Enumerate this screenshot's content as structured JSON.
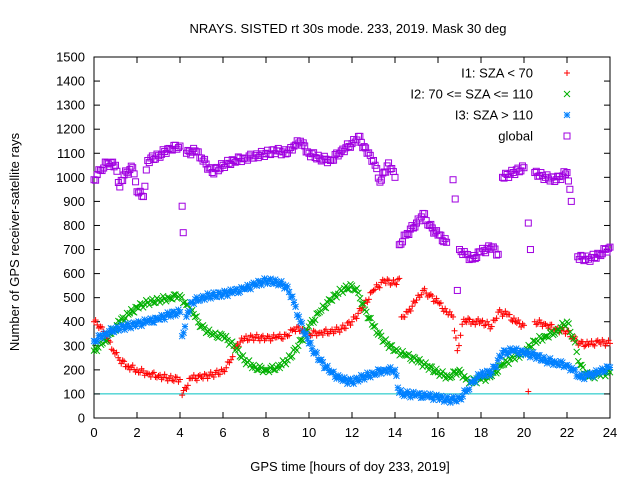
{
  "chart_data": {
    "type": "scatter",
    "title": "NRAYS. SISTED rt 30s mode. 233, 2019. Mask 30 deg",
    "xlabel": "GPS time [hours of doy 233, 2019]",
    "ylabel": "Number of GPS receiver-satellite rays",
    "xlim": [
      0,
      24
    ],
    "ylim": [
      0,
      1500
    ],
    "xticks": [
      0,
      2,
      4,
      6,
      8,
      10,
      12,
      14,
      16,
      18,
      20,
      22,
      24
    ],
    "yticks": [
      0,
      100,
      200,
      300,
      400,
      500,
      600,
      700,
      800,
      900,
      1000,
      1100,
      1200,
      1300,
      1400,
      1500
    ],
    "legend_position": "top-right",
    "reference_line": {
      "y": 100,
      "color": "#00c0c0"
    },
    "series": [
      {
        "name": "I1: SZA < 70",
        "color": "#ff0000",
        "marker": "plus",
        "points": [
          [
            0,
            400
          ],
          [
            0.3,
            380
          ],
          [
            0.6,
            330
          ],
          [
            0.9,
            280
          ],
          [
            1.2,
            240
          ],
          [
            1.6,
            215
          ],
          [
            2,
            200
          ],
          [
            2.5,
            185
          ],
          [
            3,
            175
          ],
          [
            3.5,
            165
          ],
          [
            4,
            160
          ],
          [
            4.1,
            95
          ],
          [
            4.5,
            165
          ],
          [
            5,
            170
          ],
          [
            5.5,
            180
          ],
          [
            6,
            195
          ],
          [
            6.3,
            230
          ],
          [
            6.6,
            300
          ],
          [
            7,
            330
          ],
          [
            7.5,
            335
          ],
          [
            8,
            330
          ],
          [
            8.5,
            335
          ],
          [
            9,
            340
          ],
          [
            9.3,
            370
          ],
          [
            9.7,
            370
          ],
          [
            10,
            350
          ],
          [
            10.5,
            355
          ],
          [
            11,
            360
          ],
          [
            11.5,
            370
          ],
          [
            12,
            400
          ],
          [
            12.5,
            460
          ],
          [
            13,
            530
          ],
          [
            13.5,
            570
          ],
          [
            14,
            560
          ],
          [
            14.2,
            580
          ],
          [
            14.3,
            420
          ],
          [
            14.6,
            440
          ],
          [
            15,
            490
          ],
          [
            15.3,
            530
          ],
          [
            15.6,
            510
          ],
          [
            16,
            480
          ],
          [
            16.4,
            440
          ],
          [
            16.7,
            420
          ],
          [
            16.9,
            280
          ],
          [
            17.2,
            410
          ],
          [
            17.6,
            400
          ],
          [
            18,
            400
          ],
          [
            18.5,
            380
          ],
          [
            18.8,
            440
          ],
          [
            19.2,
            430
          ],
          [
            19.6,
            400
          ],
          [
            20,
            385
          ],
          [
            20.2,
            110
          ],
          [
            20.5,
            400
          ],
          [
            21,
            390
          ],
          [
            21.5,
            370
          ],
          [
            22,
            360
          ],
          [
            22.3,
            330
          ],
          [
            22.6,
            310
          ],
          [
            23,
            305
          ],
          [
            23.5,
            315
          ],
          [
            24,
            310
          ]
        ]
      },
      {
        "name": "I2: 70 <= SZA <= 110",
        "color": "#00b000",
        "marker": "cross",
        "points": [
          [
            0,
            280
          ],
          [
            0.4,
            310
          ],
          [
            0.8,
            350
          ],
          [
            1.2,
            400
          ],
          [
            1.6,
            430
          ],
          [
            2,
            460
          ],
          [
            2.5,
            480
          ],
          [
            3,
            490
          ],
          [
            3.5,
            500
          ],
          [
            4,
            510
          ],
          [
            4.3,
            470
          ],
          [
            4.7,
            420
          ],
          [
            5,
            380
          ],
          [
            5.5,
            345
          ],
          [
            6,
            340
          ],
          [
            6.5,
            300
          ],
          [
            7,
            240
          ],
          [
            7.5,
            210
          ],
          [
            8,
            200
          ],
          [
            8.5,
            210
          ],
          [
            9,
            240
          ],
          [
            9.5,
            300
          ],
          [
            10,
            380
          ],
          [
            10.5,
            440
          ],
          [
            11,
            490
          ],
          [
            11.5,
            530
          ],
          [
            12,
            550
          ],
          [
            12.3,
            520
          ],
          [
            12.6,
            450
          ],
          [
            13,
            380
          ],
          [
            13.5,
            320
          ],
          [
            14,
            280
          ],
          [
            14.5,
            260
          ],
          [
            15,
            240
          ],
          [
            15.5,
            215
          ],
          [
            16,
            190
          ],
          [
            16.5,
            170
          ],
          [
            17,
            200
          ],
          [
            17.3,
            160
          ],
          [
            17.6,
            150
          ],
          [
            18,
            160
          ],
          [
            18.5,
            175
          ],
          [
            19,
            220
          ],
          [
            19.5,
            250
          ],
          [
            20,
            270
          ],
          [
            20.5,
            320
          ],
          [
            21,
            340
          ],
          [
            21.5,
            360
          ],
          [
            22,
            400
          ],
          [
            22.3,
            330
          ],
          [
            22.6,
            220
          ],
          [
            23,
            170
          ],
          [
            23.5,
            180
          ],
          [
            24,
            190
          ]
        ]
      },
      {
        "name": "I3: SZA > 110",
        "color": "#0080ff",
        "marker": "star",
        "points": [
          [
            0,
            320
          ],
          [
            0.5,
            350
          ],
          [
            1,
            370
          ],
          [
            1.5,
            380
          ],
          [
            2,
            390
          ],
          [
            2.5,
            400
          ],
          [
            3,
            410
          ],
          [
            3.5,
            430
          ],
          [
            4,
            440
          ],
          [
            4.1,
            340
          ],
          [
            4.5,
            480
          ],
          [
            5,
            500
          ],
          [
            5.5,
            510
          ],
          [
            6,
            515
          ],
          [
            6.5,
            525
          ],
          [
            7,
            535
          ],
          [
            7.5,
            555
          ],
          [
            8,
            570
          ],
          [
            8.5,
            565
          ],
          [
            9,
            545
          ],
          [
            9.3,
            480
          ],
          [
            9.6,
            400
          ],
          [
            10,
            310
          ],
          [
            10.5,
            240
          ],
          [
            11,
            190
          ],
          [
            11.5,
            160
          ],
          [
            12,
            150
          ],
          [
            12.5,
            170
          ],
          [
            13,
            185
          ],
          [
            13.5,
            200
          ],
          [
            14,
            200
          ],
          [
            14.2,
            105
          ],
          [
            14.5,
            100
          ],
          [
            15,
            95
          ],
          [
            15.5,
            90
          ],
          [
            16,
            85
          ],
          [
            16.5,
            75
          ],
          [
            17,
            80
          ],
          [
            17.3,
            110
          ],
          [
            17.6,
            150
          ],
          [
            18,
            180
          ],
          [
            18.5,
            190
          ],
          [
            19,
            270
          ],
          [
            19.5,
            280
          ],
          [
            20,
            270
          ],
          [
            20.5,
            260
          ],
          [
            21,
            240
          ],
          [
            21.5,
            230
          ],
          [
            22,
            220
          ],
          [
            22.3,
            200
          ],
          [
            22.6,
            170
          ],
          [
            23,
            175
          ],
          [
            23.5,
            190
          ],
          [
            24,
            210
          ]
        ]
      },
      {
        "name": "global",
        "color": "#a000e0",
        "marker": "box",
        "points": [
          [
            0,
            990
          ],
          [
            0.3,
            1030
          ],
          [
            0.6,
            1060
          ],
          [
            1,
            1050
          ],
          [
            1.2,
            960
          ],
          [
            1.4,
            1010
          ],
          [
            1.8,
            1040
          ],
          [
            2,
            940
          ],
          [
            2.3,
            920
          ],
          [
            2.5,
            1070
          ],
          [
            3,
            1090
          ],
          [
            3.5,
            1120
          ],
          [
            4,
            1130
          ],
          [
            4.1,
            880
          ],
          [
            4.15,
            770
          ],
          [
            4.3,
            1100
          ],
          [
            4.7,
            1110
          ],
          [
            5,
            1080
          ],
          [
            5.5,
            1020
          ],
          [
            6,
            1050
          ],
          [
            6.5,
            1070
          ],
          [
            7,
            1080
          ],
          [
            7.5,
            1090
          ],
          [
            8,
            1100
          ],
          [
            8.5,
            1110
          ],
          [
            9,
            1100
          ],
          [
            9.3,
            1130
          ],
          [
            9.6,
            1150
          ],
          [
            10,
            1100
          ],
          [
            10.5,
            1080
          ],
          [
            11,
            1070
          ],
          [
            11.5,
            1110
          ],
          [
            12,
            1140
          ],
          [
            12.3,
            1170
          ],
          [
            12.7,
            1100
          ],
          [
            13,
            1070
          ],
          [
            13.3,
            980
          ],
          [
            13.7,
            1060
          ],
          [
            14,
            1000
          ],
          [
            14.2,
            720
          ],
          [
            14.5,
            760
          ],
          [
            15,
            810
          ],
          [
            15.3,
            850
          ],
          [
            15.6,
            800
          ],
          [
            16,
            760
          ],
          [
            16.4,
            730
          ],
          [
            16.7,
            990
          ],
          [
            16.8,
            910
          ],
          [
            16.9,
            530
          ],
          [
            17,
            700
          ],
          [
            17.3,
            680
          ],
          [
            17.6,
            660
          ],
          [
            18,
            690
          ],
          [
            18.5,
            710
          ],
          [
            18.8,
            680
          ],
          [
            19,
            1000
          ],
          [
            19.5,
            1020
          ],
          [
            20,
            1040
          ],
          [
            20.2,
            810
          ],
          [
            20.3,
            700
          ],
          [
            20.5,
            1020
          ],
          [
            21,
            1000
          ],
          [
            21.5,
            990
          ],
          [
            22,
            1020
          ],
          [
            22.2,
            900
          ],
          [
            22.5,
            670
          ],
          [
            23,
            660
          ],
          [
            23.5,
            680
          ],
          [
            24,
            710
          ]
        ]
      }
    ]
  }
}
